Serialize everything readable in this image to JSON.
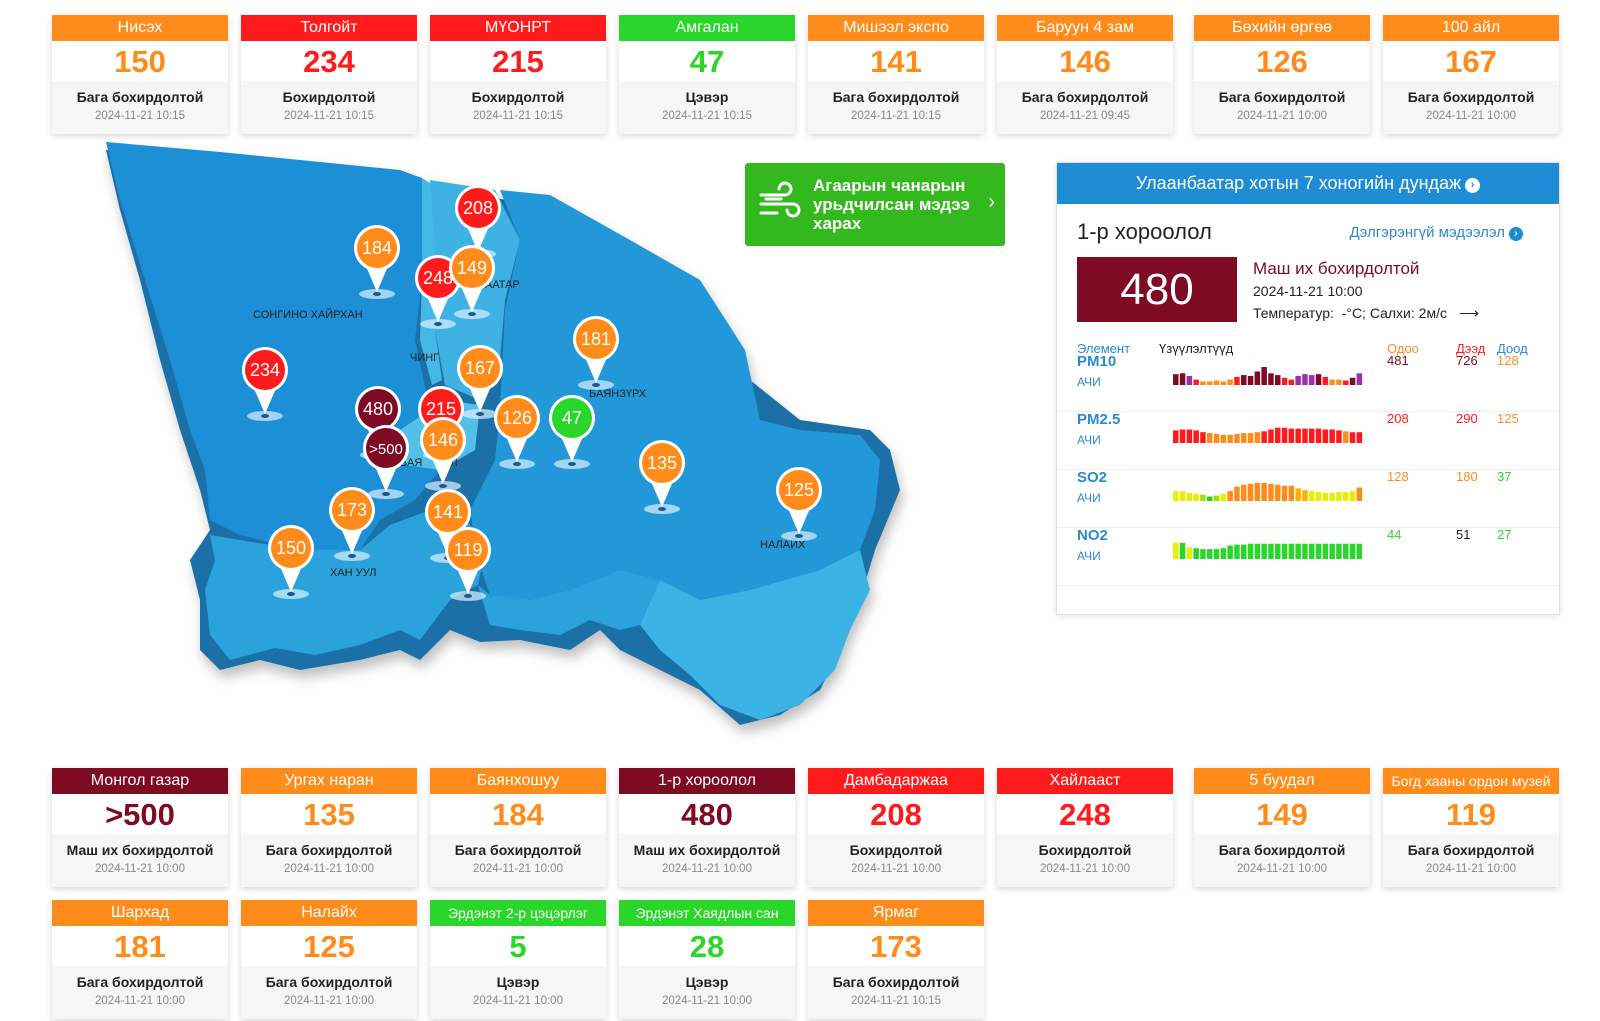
{
  "top_cards": [
    {
      "name": "Нисэх",
      "value": "150",
      "status": "Бага бохирдолтой",
      "time": "2024-11-21 10:15",
      "color": "#ff8c1a"
    },
    {
      "name": "Толгойт",
      "value": "234",
      "status": "Бохирдолтой",
      "time": "2024-11-21 10:15",
      "color": "#ff1b1b"
    },
    {
      "name": "МҮОНРТ",
      "value": "215",
      "status": "Бохирдолтой",
      "time": "2024-11-21 10:15",
      "color": "#ff1b1b"
    },
    {
      "name": "Амгалан",
      "value": "47",
      "status": "Цэвэр",
      "time": "2024-11-21 10:15",
      "color": "#2ad62a"
    },
    {
      "name": "Мишээл экспо",
      "value": "141",
      "status": "Бага бохирдолтой",
      "time": "2024-11-21 10:15",
      "color": "#ff8c1a"
    },
    {
      "name": "Баруун 4 зам",
      "value": "146",
      "status": "Бага бохирдолтой",
      "time": "2024-11-21 09:45",
      "color": "#ff8c1a"
    },
    {
      "name": "Бөхийн өргөө",
      "value": "126",
      "status": "Бага бохирдолтой",
      "time": "2024-11-21 10:00",
      "color": "#ff8c1a"
    },
    {
      "name": "100 айл",
      "value": "167",
      "status": "Бага бохирдолтой",
      "time": "2024-11-21 10:00",
      "color": "#ff8c1a"
    }
  ],
  "bottom_cards_row1": [
    {
      "name": "Монгол газар",
      "value": ">500",
      "status": "Маш их бохирдолтой",
      "time": "2024-11-21 10:00",
      "color": "#7e0a23"
    },
    {
      "name": "Ургах наран",
      "value": "135",
      "status": "Бага бохирдолтой",
      "time": "2024-11-21 10:00",
      "color": "#ff8c1a"
    },
    {
      "name": "Баянхошуу",
      "value": "184",
      "status": "Бага бохирдолтой",
      "time": "2024-11-21 10:00",
      "color": "#ff8c1a"
    },
    {
      "name": "1-р хороолол",
      "value": "480",
      "status": "Маш их бохирдолтой",
      "time": "2024-11-21 10:00",
      "color": "#7e0a23"
    },
    {
      "name": "Дамбадаржаа",
      "value": "208",
      "status": "Бохирдолтой",
      "time": "2024-11-21 10:00",
      "color": "#ff1b1b"
    },
    {
      "name": "Хайлааст",
      "value": "248",
      "status": "Бохирдолтой",
      "time": "2024-11-21 10:00",
      "color": "#ff1b1b"
    },
    {
      "name": "5 буудал",
      "value": "149",
      "status": "Бага бохирдолтой",
      "time": "2024-11-21 10:00",
      "color": "#ff8c1a"
    },
    {
      "name": "Богд хааны ордон музей",
      "value": "119",
      "status": "Бага бохирдолтой",
      "time": "2024-11-21 10:00",
      "color": "#ff8c1a"
    }
  ],
  "bottom_cards_row2": [
    {
      "name": "Шархад",
      "value": "181",
      "status": "Бага бохирдолтой",
      "time": "2024-11-21 10:00",
      "color": "#ff8c1a"
    },
    {
      "name": "Налайх",
      "value": "125",
      "status": "Бага бохирдолтой",
      "time": "2024-11-21 10:00",
      "color": "#ff8c1a"
    },
    {
      "name": "Эрдэнэт 2-р цэцэрлэг",
      "value": "5",
      "status": "Цэвэр",
      "time": "2024-11-21 10:00",
      "color": "#2ad62a"
    },
    {
      "name": "Эрдэнэт Хаядлын сан",
      "value": "28",
      "status": "Цэвэр",
      "time": "2024-11-21 10:00",
      "color": "#2ad62a"
    },
    {
      "name": "Ярмаг",
      "value": "173",
      "status": "Бага бохирдолтой",
      "time": "2024-11-21 10:15",
      "color": "#ff8c1a"
    }
  ],
  "map": {
    "districts": [
      "СОНГИНО ХАЙРХАН",
      "ЧИНГ",
      "БААТАР",
      "БАЯНЗҮРХ",
      "БАЯ",
      "ОЛ",
      "ХАН УУЛ",
      "НАЛАЙХ"
    ],
    "markers": [
      {
        "value": "208",
        "color": "#ff1b1b"
      },
      {
        "value": "184",
        "color": "#ff8c1a"
      },
      {
        "value": "248",
        "color": "#ff1b1b"
      },
      {
        "value": "149",
        "color": "#ff8c1a"
      },
      {
        "value": "181",
        "color": "#ff8c1a"
      },
      {
        "value": "234",
        "color": "#ff1b1b"
      },
      {
        "value": "167",
        "color": "#ff8c1a"
      },
      {
        "value": "480",
        "color": "#7e0a23"
      },
      {
        "value": "215",
        "color": "#ff1b1b"
      },
      {
        "value": ">500",
        "color": "#7e0a23"
      },
      {
        "value": "146",
        "color": "#ff8c1a"
      },
      {
        "value": "126",
        "color": "#ff8c1a"
      },
      {
        "value": "47",
        "color": "#2ad62a"
      },
      {
        "value": "135",
        "color": "#ff8c1a"
      },
      {
        "value": "125",
        "color": "#ff8c1a"
      },
      {
        "value": "173",
        "color": "#ff8c1a"
      },
      {
        "value": "141",
        "color": "#ff8c1a"
      },
      {
        "value": "150",
        "color": "#ff8c1a"
      },
      {
        "value": "119",
        "color": "#ff8c1a"
      }
    ]
  },
  "forecast": {
    "label": "Агаарын чанарын урьдчилсан мэдээ харах",
    "icon": "wind-icon",
    "bg": "#33b81e"
  },
  "panel": {
    "title": "Улаанбаатар хотын 7 хоногийн дундаж",
    "station": "1-р хороолол",
    "details_link": "Дэлгэрэнгүй мэдээлэл",
    "aqi": "480",
    "aqi_color": "#7e0a23",
    "status": "Маш их бохирдолтой",
    "time": "2024-11-21 10:00",
    "weather_label": "Температур:",
    "weather_value": "-°C; Салхи: 2м/с",
    "weather_icon": "arrow-right-icon",
    "headers": {
      "element": "Элемент",
      "trend": "Үзүүлэлтүүд",
      "now": "Одоо",
      "max": "Дээд",
      "min": "Доод"
    },
    "pollutants": [
      {
        "name": "PM10",
        "unit": "АЧИ",
        "now": "481",
        "max": "726",
        "min": "128",
        "now_color": "#7e0a23",
        "max_color": "#7e0a23",
        "min_color": "#ff8c1a",
        "bars": [
          0.6,
          0.65,
          0.5,
          0.3,
          0.2,
          0.2,
          0.25,
          0.2,
          0.3,
          0.45,
          0.55,
          0.5,
          0.75,
          1.0,
          0.65,
          0.55,
          0.4,
          0.3,
          0.5,
          0.6,
          0.55,
          0.6,
          0.45,
          0.3,
          0.3,
          0.25,
          0.4,
          0.65
        ],
        "bar_colors": [
          "#7e0a23",
          "#7e0a23",
          "#9b2fae",
          "#ff1b1b",
          "#ff8c1a",
          "#ff8c1a",
          "#ff8c1a",
          "#ff8c1a",
          "#ff8c1a",
          "#ff1b1b",
          "#7e0a23",
          "#7e0a23",
          "#7e0a23",
          "#7e0a23",
          "#7e0a23",
          "#7e0a23",
          "#ff1b1b",
          "#ff1b1b",
          "#9b2fae",
          "#9b2fae",
          "#9b2fae",
          "#7e0a23",
          "#ff1b1b",
          "#ff8c1a",
          "#ff8c1a",
          "#ff1b1b",
          "#7e0a23",
          "#9b2fae"
        ]
      },
      {
        "name": "PM2.5",
        "unit": "АЧИ",
        "now": "208",
        "max": "290",
        "min": "125",
        "now_color": "#ff1b1b",
        "max_color": "#ff1b1b",
        "min_color": "#ff8c1a",
        "bars": [
          0.7,
          0.75,
          0.75,
          0.7,
          0.6,
          0.55,
          0.5,
          0.45,
          0.45,
          0.5,
          0.55,
          0.55,
          0.6,
          0.65,
          0.75,
          0.85,
          0.85,
          0.8,
          0.8,
          0.8,
          0.8,
          0.8,
          0.75,
          0.75,
          0.7,
          0.65,
          0.6,
          0.6
        ],
        "bar_colors": [
          "#ff1b1b",
          "#ff1b1b",
          "#ff1b1b",
          "#ff1b1b",
          "#ff1b1b",
          "#ff8c1a",
          "#ff8c1a",
          "#ff8c1a",
          "#ff8c1a",
          "#ff8c1a",
          "#ff8c1a",
          "#ff8c1a",
          "#ff8c1a",
          "#ff1b1b",
          "#ff1b1b",
          "#ff1b1b",
          "#ff1b1b",
          "#ff1b1b",
          "#ff1b1b",
          "#ff1b1b",
          "#ff1b1b",
          "#ff1b1b",
          "#ff1b1b",
          "#ff1b1b",
          "#ff1b1b",
          "#ff8c1a",
          "#ff1b1b",
          "#ff1b1b"
        ]
      },
      {
        "name": "SO2",
        "unit": "АЧИ",
        "now": "128",
        "max": "180",
        "min": "37",
        "now_color": "#ff8c1a",
        "max_color": "#ff8c1a",
        "min_color": "#2ad62a",
        "bars": [
          0.55,
          0.55,
          0.45,
          0.4,
          0.35,
          0.25,
          0.3,
          0.4,
          0.55,
          0.8,
          0.9,
          0.95,
          1.0,
          1.0,
          0.95,
          0.9,
          0.85,
          0.85,
          0.7,
          0.6,
          0.55,
          0.5,
          0.45,
          0.45,
          0.5,
          0.5,
          0.55,
          0.75
        ],
        "bar_colors": [
          "#e6f000",
          "#e6f000",
          "#e6f000",
          "#e6f000",
          "#9be000",
          "#2ad62a",
          "#9be000",
          "#e6f000",
          "#ff8c1a",
          "#ff8c1a",
          "#ff8c1a",
          "#ff8c1a",
          "#ff8c1a",
          "#ff8c1a",
          "#ff8c1a",
          "#ff8c1a",
          "#ff8c1a",
          "#ff8c1a",
          "#ffb000",
          "#ffb000",
          "#e6f000",
          "#e6f000",
          "#e6f000",
          "#e6f000",
          "#e6f000",
          "#e6f000",
          "#e6f000",
          "#ff8c1a"
        ]
      },
      {
        "name": "NO2",
        "unit": "АЧИ",
        "now": "44",
        "max": "51",
        "min": "27",
        "now_color": "#2ad62a",
        "max_color": "#222222",
        "min_color": "#2ad62a",
        "bars": [
          0.9,
          0.9,
          0.65,
          0.6,
          0.55,
          0.55,
          0.55,
          0.6,
          0.75,
          0.8,
          0.8,
          0.85,
          0.85,
          0.85,
          0.85,
          0.85,
          0.85,
          0.85,
          0.85,
          0.85,
          0.85,
          0.85,
          0.85,
          0.85,
          0.85,
          0.85,
          0.85,
          0.85
        ],
        "bar_colors": [
          "#e6f000",
          "#2ad62a",
          "#e6f000",
          "#2ad62a",
          "#2ad62a",
          "#2ad62a",
          "#2ad62a",
          "#2ad62a",
          "#2ad62a",
          "#2ad62a",
          "#2ad62a",
          "#2ad62a",
          "#2ad62a",
          "#2ad62a",
          "#2ad62a",
          "#2ad62a",
          "#2ad62a",
          "#2ad62a",
          "#2ad62a",
          "#2ad62a",
          "#2ad62a",
          "#2ad62a",
          "#2ad62a",
          "#2ad62a",
          "#2ad62a",
          "#2ad62a",
          "#2ad62a",
          "#2ad62a"
        ]
      }
    ]
  }
}
